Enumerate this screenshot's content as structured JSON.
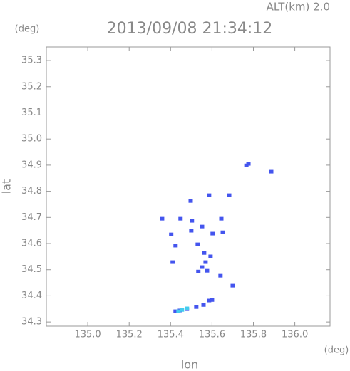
{
  "chart_data": {
    "type": "scatter",
    "title": "2013/09/08 21:34:12",
    "subtitle": "ALT(km) 2.0",
    "y_unit": "(deg)",
    "x_unit": "(deg)",
    "xlabel": "lon",
    "ylabel": "lat",
    "xlim": [
      134.8,
      136.17
    ],
    "ylim": [
      34.284,
      35.352
    ],
    "xticks": [
      {
        "value": 135.0,
        "label": "135.0"
      },
      {
        "value": 135.2,
        "label": "135.2"
      },
      {
        "value": 135.4,
        "label": "135.4"
      },
      {
        "value": 135.6,
        "label": "135.6"
      },
      {
        "value": 135.8,
        "label": "135.8"
      },
      {
        "value": 136.0,
        "label": "136.0"
      }
    ],
    "yticks": [
      {
        "value": 34.3,
        "label": "34.3"
      },
      {
        "value": 34.4,
        "label": "34.4"
      },
      {
        "value": 34.5,
        "label": "34.5"
      },
      {
        "value": 34.6,
        "label": "34.6"
      },
      {
        "value": 34.7,
        "label": "34.7"
      },
      {
        "value": 34.8,
        "label": "34.8"
      },
      {
        "value": 34.9,
        "label": "34.9"
      },
      {
        "value": 35.0,
        "label": "35.0"
      },
      {
        "value": 35.1,
        "label": "35.1"
      },
      {
        "value": 35.2,
        "label": "35.2"
      },
      {
        "value": 35.3,
        "label": "35.3"
      }
    ],
    "series": [
      {
        "color": "#4455ee",
        "x": [
          135.766,
          135.776,
          135.886,
          135.683,
          135.586,
          135.497,
          135.359,
          135.448,
          135.503,
          135.552,
          135.645,
          135.652,
          135.603,
          135.5,
          135.403,
          135.424,
          135.531,
          135.562,
          135.569,
          135.576,
          135.552,
          135.593,
          135.534,
          135.41,
          135.641,
          135.7,
          135.586,
          135.6,
          135.559,
          135.524,
          135.479,
          135.445,
          135.424
        ],
        "y": [
          34.899,
          34.905,
          34.875,
          34.785,
          34.785,
          34.763,
          34.695,
          34.695,
          34.687,
          34.665,
          34.695,
          34.643,
          34.638,
          34.649,
          34.635,
          34.592,
          34.597,
          34.564,
          34.529,
          34.496,
          34.51,
          34.551,
          34.493,
          34.529,
          34.477,
          34.439,
          34.382,
          34.384,
          34.365,
          34.357,
          34.349,
          34.344,
          34.341
        ]
      },
      {
        "color": "#44ccee",
        "x": [
          135.438,
          135.479,
          135.455
        ],
        "y": [
          34.341,
          34.352,
          34.346
        ]
      }
    ]
  }
}
